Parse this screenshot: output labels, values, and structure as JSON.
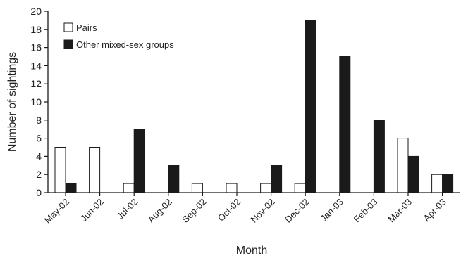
{
  "chart_data": {
    "type": "bar",
    "xlabel": "Month",
    "ylabel": "Number of sightings",
    "ylim": [
      0,
      20
    ],
    "yticks": [
      0,
      2,
      4,
      6,
      8,
      10,
      12,
      14,
      16,
      18,
      20
    ],
    "categories": [
      "May-02",
      "Jun-02",
      "Jul-02",
      "Aug-02",
      "Sep-02",
      "Oct-02",
      "Nov-02",
      "Dec-02",
      "Jan-03",
      "Feb-03",
      "Mar-03",
      "Apr-03"
    ],
    "series": [
      {
        "name": "Pairs",
        "values": [
          5,
          5,
          1,
          0,
          1,
          1,
          1,
          1,
          0,
          0,
          6,
          2
        ],
        "color": "#ffffff"
      },
      {
        "name": "Other mixed-sex groups",
        "values": [
          1,
          0,
          7,
          3,
          0,
          0,
          3,
          19,
          15,
          8,
          4,
          2
        ],
        "color": "#1a1a1a"
      }
    ],
    "legend": "top-left",
    "grid": false,
    "edge_color": "#1a1a1a"
  }
}
